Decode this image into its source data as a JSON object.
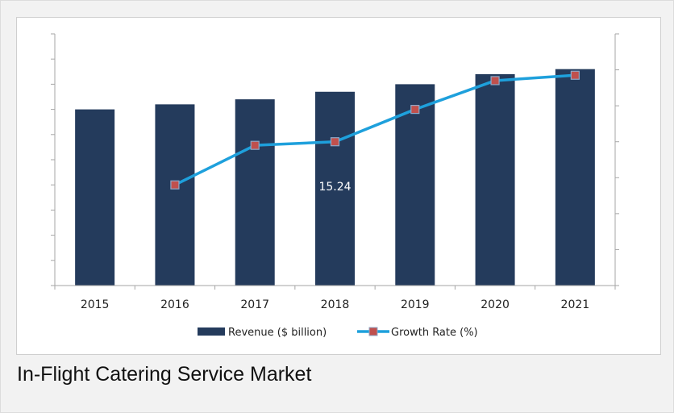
{
  "caption": "In-Flight Catering Service Market",
  "chart_data": {
    "type": "bar",
    "categories": [
      "2015",
      "2016",
      "2017",
      "2018",
      "2019",
      "2020",
      "2021"
    ],
    "series": [
      {
        "name": "Revenue ($ billion)",
        "type": "bar",
        "axis": "left",
        "color": "#243b5c",
        "values": [
          7.0,
          7.2,
          7.4,
          7.7,
          8.0,
          8.4,
          8.6
        ]
      },
      {
        "name": "Growth Rate (%)",
        "type": "line",
        "axis": "right",
        "color": "#1ea0dc",
        "marker_color": "#c0504d",
        "values": [
          null,
          2.8,
          3.9,
          4.0,
          4.9,
          5.7,
          5.85
        ]
      }
    ],
    "ylim_left": [
      0,
      10
    ],
    "ylim_right": [
      0,
      7
    ],
    "data_labels": [
      {
        "category": "2018",
        "text": "15.24"
      }
    ],
    "legend_position": "bottom",
    "grid": false
  }
}
